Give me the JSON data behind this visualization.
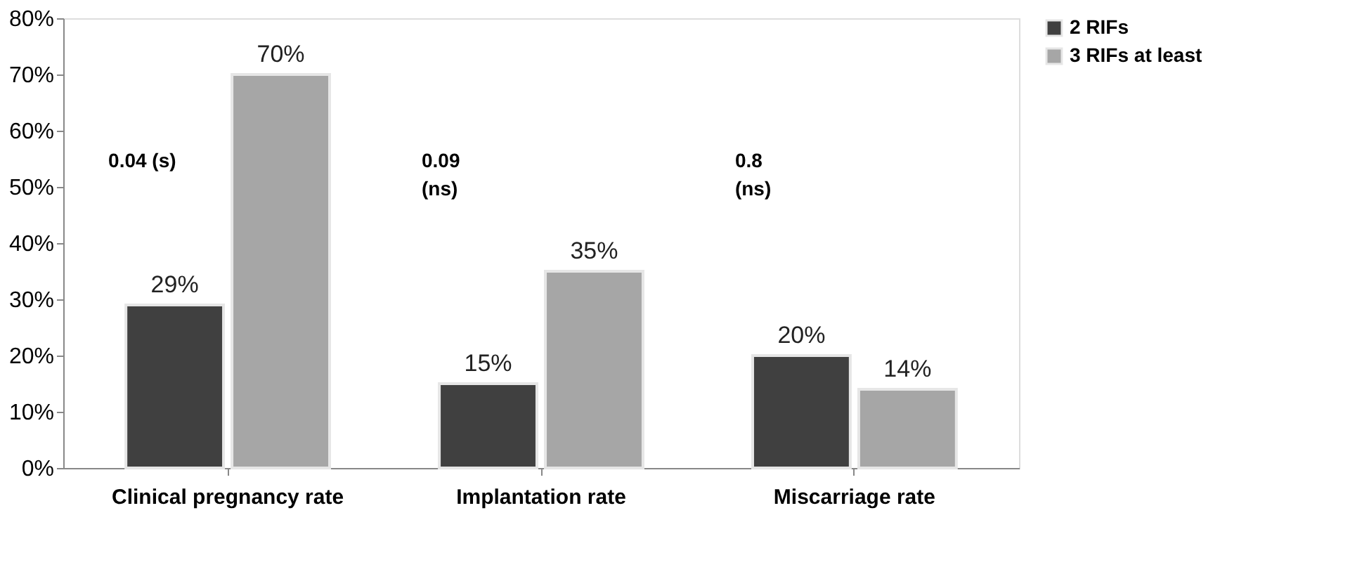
{
  "chart_data": {
    "type": "bar",
    "categories": [
      "Clinical pregnancy rate",
      "Implantation rate",
      "Miscarriage rate"
    ],
    "series": [
      {
        "name": "2 RIFs",
        "color": "#404040",
        "values": [
          29,
          15,
          20
        ],
        "value_labels": [
          "29%",
          "15%",
          "20%"
        ]
      },
      {
        "name": "3 RIFs at least",
        "color": "#a6a6a6",
        "values": [
          70,
          35,
          14
        ],
        "value_labels": [
          "70%",
          "35%",
          "14%"
        ]
      }
    ],
    "ylim": [
      0,
      80
    ],
    "yticks": [
      {
        "value": 0,
        "label": "0%"
      },
      {
        "value": 10,
        "label": "10%"
      },
      {
        "value": 20,
        "label": "20%"
      },
      {
        "value": 30,
        "label": "30%"
      },
      {
        "value": 40,
        "label": "40%"
      },
      {
        "value": 50,
        "label": "50%"
      },
      {
        "value": 60,
        "label": "60%"
      },
      {
        "value": 70,
        "label": "70%"
      },
      {
        "value": 80,
        "label": "80%"
      }
    ],
    "annotations": [
      "0.04 (s)",
      "0.09\n(ns)",
      "0.8\n(ns)"
    ],
    "grid": false,
    "legend": "right"
  }
}
